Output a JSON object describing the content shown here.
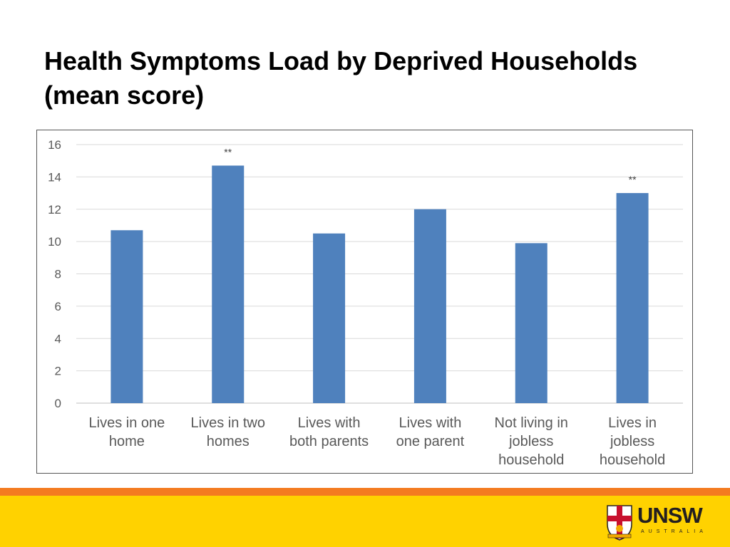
{
  "title": {
    "line1": "Health Symptoms Load by Deprived Households",
    "line2": "(mean score)"
  },
  "chart_data": {
    "type": "bar",
    "categories": [
      [
        "Lives in one",
        "home"
      ],
      [
        "Lives in two",
        "homes"
      ],
      [
        "Lives with",
        "both parents"
      ],
      [
        "Lives with",
        "one parent"
      ],
      [
        "Not living in",
        "jobless",
        "household"
      ],
      [
        "Lives in",
        "jobless",
        "household"
      ]
    ],
    "values": [
      10.7,
      14.7,
      10.5,
      12.0,
      9.9,
      13.0
    ],
    "annotations": [
      "",
      "**",
      "",
      "",
      "",
      "**"
    ],
    "ylim": [
      0,
      16
    ],
    "yticks": [
      "0",
      "2",
      "4",
      "6",
      "8",
      "10",
      "12",
      "14",
      "16"
    ],
    "grid": true,
    "bar_color": "#4f81bd",
    "legend": "none"
  },
  "colors": {
    "footer_orange": "#f47b20",
    "footer_yellow": "#ffd200",
    "crest_red": "#c8102e",
    "crest_gold": "#f2a900"
  },
  "logo": {
    "wordmark": "UNSW",
    "country": "AUSTRALIA"
  }
}
